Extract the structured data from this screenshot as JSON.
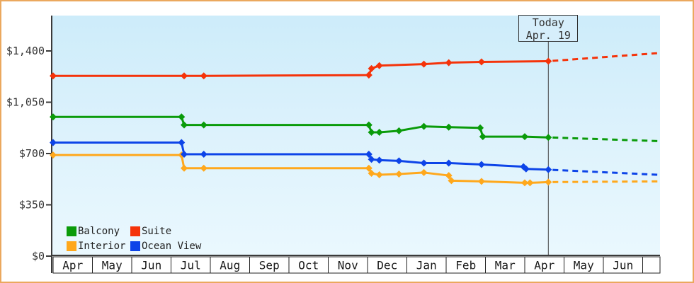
{
  "legend": {
    "items": [
      {
        "label": "Balcony",
        "color": "#0a9b0a"
      },
      {
        "label": "Suite",
        "color": "#f5330a"
      },
      {
        "label": "Interior",
        "color": "#ffa81c"
      },
      {
        "label": "Ocean View",
        "color": "#0d44e8"
      }
    ]
  },
  "chart_data": {
    "type": "line",
    "title": "",
    "description": "Cruise cabin price history by category with dashed forecast after today marker",
    "y_axis": {
      "ticks": [
        {
          "label": "$0",
          "value": 0
        },
        {
          "label": "$350",
          "value": 350
        },
        {
          "label": "$700",
          "value": 700
        },
        {
          "label": "$1,050",
          "value": 1050
        },
        {
          "label": "$1,400",
          "value": 1400
        }
      ],
      "max": 1400
    },
    "x_axis": {
      "months": [
        "Apr",
        "May",
        "Jun",
        "Jul",
        "Aug",
        "Sep",
        "Oct",
        "Nov",
        "Dec",
        "Jan",
        "Feb",
        "Mar",
        "Apr",
        "May",
        "Jun"
      ],
      "trailing_empty_cell": true
    },
    "today": {
      "box_line1": "Today",
      "box_line2": "Apr. 19",
      "month_index": 12,
      "day": 19
    },
    "series": [
      {
        "name": "Interior",
        "color": "#ffa81c",
        "points": [
          [
            0,
            1,
            690
          ],
          [
            3,
            9,
            690
          ],
          [
            3,
            11,
            600
          ],
          [
            3,
            26,
            600
          ],
          [
            8,
            2,
            600
          ],
          [
            8,
            4,
            565
          ],
          [
            8,
            10,
            555
          ],
          [
            8,
            25,
            560
          ],
          [
            9,
            14,
            570
          ],
          [
            10,
            3,
            550
          ],
          [
            10,
            5,
            515
          ],
          [
            10,
            28,
            510
          ],
          [
            11,
            31,
            500
          ],
          [
            12,
            5,
            500
          ],
          [
            12,
            19,
            505
          ]
        ],
        "projection_end_value": 510
      },
      {
        "name": "Ocean View",
        "color": "#0d44e8",
        "points": [
          [
            0,
            1,
            775
          ],
          [
            3,
            9,
            775
          ],
          [
            3,
            11,
            695
          ],
          [
            3,
            26,
            695
          ],
          [
            8,
            2,
            695
          ],
          [
            8,
            4,
            660
          ],
          [
            8,
            10,
            655
          ],
          [
            8,
            25,
            650
          ],
          [
            9,
            14,
            635
          ],
          [
            10,
            3,
            635
          ],
          [
            10,
            28,
            625
          ],
          [
            11,
            30,
            610
          ],
          [
            12,
            2,
            595
          ],
          [
            12,
            19,
            590
          ]
        ],
        "projection_end_value": 555
      },
      {
        "name": "Balcony",
        "color": "#0a9b0a",
        "points": [
          [
            0,
            1,
            950
          ],
          [
            3,
            9,
            950
          ],
          [
            3,
            11,
            895
          ],
          [
            3,
            26,
            895
          ],
          [
            8,
            2,
            895
          ],
          [
            8,
            4,
            845
          ],
          [
            8,
            10,
            845
          ],
          [
            8,
            25,
            855
          ],
          [
            9,
            14,
            885
          ],
          [
            10,
            3,
            880
          ],
          [
            10,
            27,
            875
          ],
          [
            10,
            29,
            815
          ],
          [
            11,
            31,
            815
          ],
          [
            12,
            19,
            810
          ]
        ],
        "projection_end_value": 785
      },
      {
        "name": "Suite",
        "color": "#f5330a",
        "points": [
          [
            0,
            1,
            1230
          ],
          [
            3,
            11,
            1230
          ],
          [
            3,
            26,
            1230
          ],
          [
            8,
            2,
            1235
          ],
          [
            8,
            4,
            1280
          ],
          [
            8,
            10,
            1300
          ],
          [
            9,
            14,
            1310
          ],
          [
            10,
            3,
            1320
          ],
          [
            10,
            28,
            1325
          ],
          [
            12,
            19,
            1330
          ]
        ],
        "projection_end_value": 1385
      }
    ],
    "points_note": "points are [timeline_month_index, day, price_usd]; timeline month 0 = first Apr"
  }
}
